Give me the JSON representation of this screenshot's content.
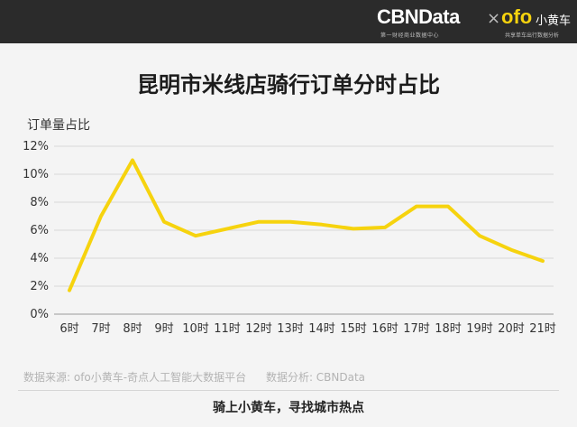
{
  "header": {
    "brand_cbn": "CBNData",
    "brand_cbn_sub": "第一财经商业数据中心",
    "brand_x": "×",
    "brand_ofo": "ofo",
    "brand_ofo_cn": "小黄车",
    "brand_ofo_sub": "共享单车出行数据分析"
  },
  "chart_data": {
    "type": "line",
    "title": "昆明市米线店骑行订单分时占比",
    "ylabel": "订单量占比",
    "xlabel": "",
    "categories": [
      "6时",
      "7时",
      "8时",
      "9时",
      "10时",
      "11时",
      "12时",
      "13时",
      "14时",
      "15时",
      "16时",
      "17时",
      "18时",
      "19时",
      "20时",
      "21时"
    ],
    "values": [
      1.7,
      7.0,
      11.0,
      6.6,
      5.6,
      6.1,
      6.6,
      6.6,
      6.4,
      6.1,
      6.2,
      7.7,
      7.7,
      5.6,
      4.6,
      3.8
    ],
    "yticks": [
      "0%",
      "2%",
      "4%",
      "6%",
      "8%",
      "10%",
      "12%"
    ],
    "ylim": [
      0,
      12
    ],
    "grid": true,
    "line_color": "#f6d30e"
  },
  "source": {
    "data_source": "数据来源: ofo小黄车-奇点人工智能大数据平台",
    "analysis": "数据分析: CBNData"
  },
  "footer": {
    "slogan": "骑上小黄车，寻找城市热点"
  }
}
